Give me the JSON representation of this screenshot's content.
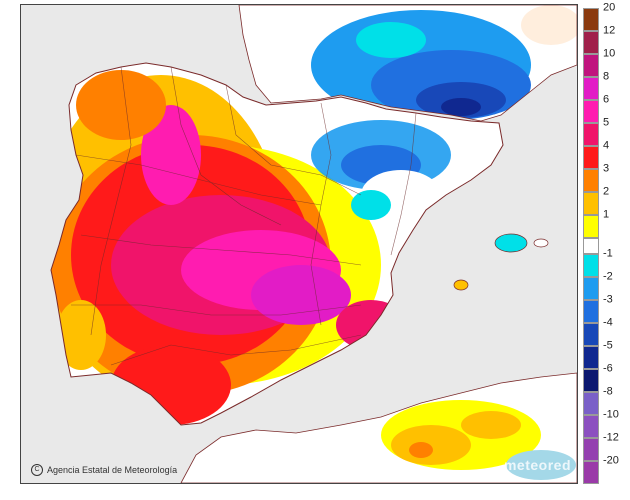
{
  "map": {
    "credit_text": "Agencia Estatal de Meteorología",
    "watermark_text": "meteored"
  },
  "legend": {
    "positive": [
      {
        "label": "20",
        "color": "#8b3a0e"
      },
      {
        "label": "12",
        "color": "#a0204a"
      },
      {
        "label": "10",
        "color": "#c0147e"
      },
      {
        "label": "8",
        "color": "#e21cc6"
      },
      {
        "label": "6",
        "color": "#ff1cb0"
      },
      {
        "label": "5",
        "color": "#f0146a"
      },
      {
        "label": "4",
        "color": "#ff1a1a"
      },
      {
        "label": "3",
        "color": "#ff8000"
      },
      {
        "label": "2",
        "color": "#ffc000"
      },
      {
        "label": "1",
        "color": "#ffff00"
      }
    ],
    "negative": [
      {
        "label": "-1",
        "color": "#00e0e8"
      },
      {
        "label": "-2",
        "color": "#1e9cf0"
      },
      {
        "label": "-3",
        "color": "#2070e0"
      },
      {
        "label": "-4",
        "color": "#1848b8"
      },
      {
        "label": "-5",
        "color": "#102890"
      },
      {
        "label": "-6",
        "color": "#0c1870"
      },
      {
        "label": "-8",
        "color": "#7a60c8"
      },
      {
        "label": "-10",
        "color": "#8c50c0"
      },
      {
        "label": "-12",
        "color": "#9440b0"
      },
      {
        "label": "-20",
        "color": "#9a3aa8"
      }
    ]
  }
}
